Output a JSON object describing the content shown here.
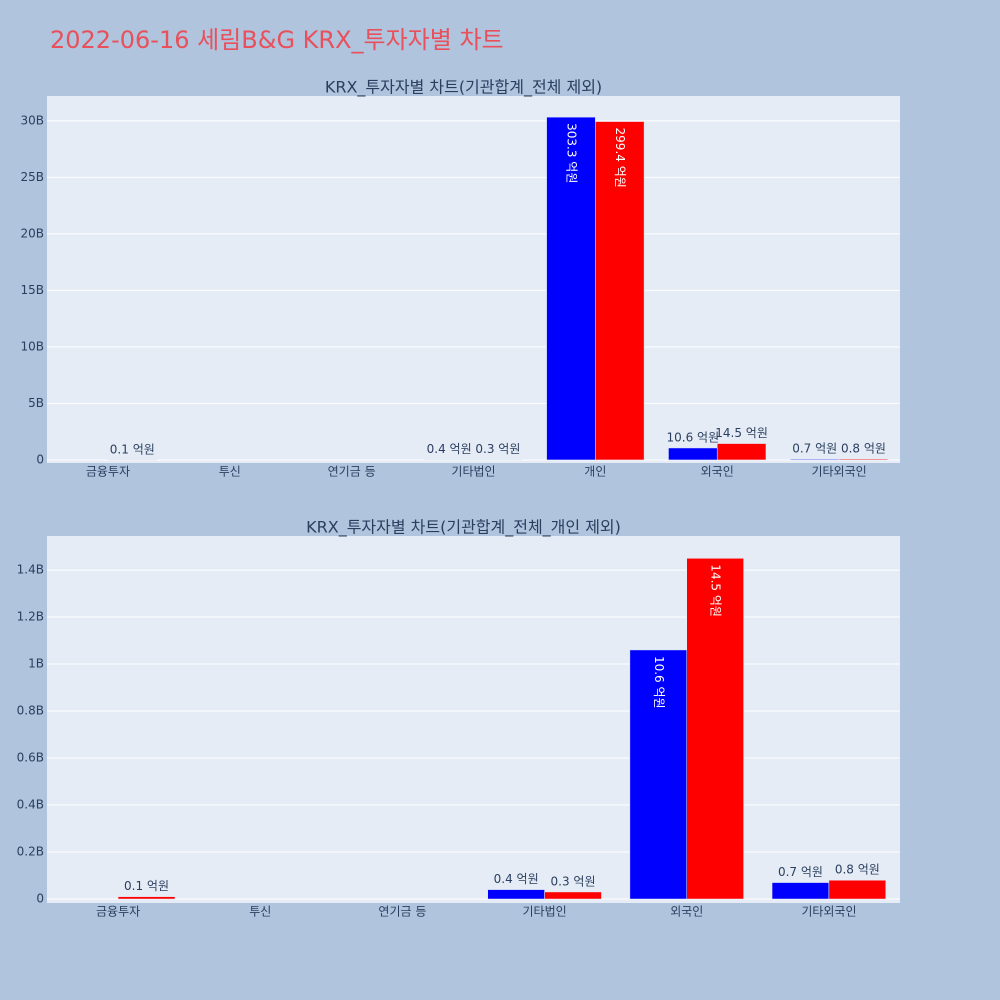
{
  "title": "2022-06-16 세림B&G KRX_투자자별 차트",
  "chart_data": [
    {
      "type": "bar",
      "title": "KRX_투자자별 차트(기관합계_전체 제외)",
      "categories": [
        "금융투자",
        "투신",
        "연기금 등",
        "기타법인",
        "개인",
        "외국인",
        "기타외국인"
      ],
      "series": [
        {
          "color": "#0000ff",
          "values": [
            0,
            0,
            0,
            40000000,
            30330000000,
            1060000000,
            70000000
          ],
          "value_labels": [
            null,
            null,
            null,
            "0.4 억원",
            "303.3 억원",
            "10.6 억원",
            "0.7 억원"
          ]
        },
        {
          "color": "#ff0000",
          "values": [
            10000000,
            0,
            0,
            30000000,
            29940000000,
            1450000000,
            80000000
          ],
          "value_labels": [
            "0.1 억원",
            null,
            null,
            "0.3 억원",
            "299.4 억원",
            "14.5 억원",
            "0.8 억원"
          ]
        }
      ],
      "ylim": [
        -270000000,
        32200000000
      ],
      "yticks": [
        0,
        {
          "value": 5000000000,
          "label": "5B"
        },
        {
          "value": 10000000000,
          "label": "10B"
        },
        {
          "value": 15000000000,
          "label": "15B"
        },
        {
          "value": 20000000000,
          "label": "20B"
        },
        {
          "value": 25000000000,
          "label": "25B"
        },
        {
          "value": 30000000000,
          "label": "30B"
        }
      ],
      "grid": true
    },
    {
      "type": "bar",
      "title": "KRX_투자자별 차트(기관합계_전체_개인 제외)",
      "categories": [
        "금융투자",
        "투신",
        "연기금 등",
        "기타법인",
        "외국인",
        "기타외국인"
      ],
      "series": [
        {
          "color": "#0000ff",
          "values": [
            0,
            0,
            0,
            40000000,
            1060000000,
            70000000
          ],
          "value_labels": [
            null,
            null,
            null,
            "0.4 억원",
            "10.6 억원",
            "0.7 억원"
          ]
        },
        {
          "color": "#ff0000",
          "values": [
            10000000,
            0,
            0,
            30000000,
            1450000000,
            80000000
          ],
          "value_labels": [
            "0.1 억원",
            null,
            null,
            "0.3 억원",
            "14.5 억원",
            "0.8 억원"
          ]
        }
      ],
      "ylim": [
        -17000000,
        1545000000
      ],
      "yticks": [
        0,
        {
          "value": 200000000,
          "label": "0.2B"
        },
        {
          "value": 400000000,
          "label": "0.4B"
        },
        {
          "value": 600000000,
          "label": "0.6B"
        },
        {
          "value": 800000000,
          "label": "0.8B"
        },
        {
          "value": 1000000000,
          "label": "1B"
        },
        {
          "value": 1200000000,
          "label": "1.2B"
        },
        {
          "value": 1400000000,
          "label": "1.4B"
        }
      ],
      "grid": true
    }
  ]
}
